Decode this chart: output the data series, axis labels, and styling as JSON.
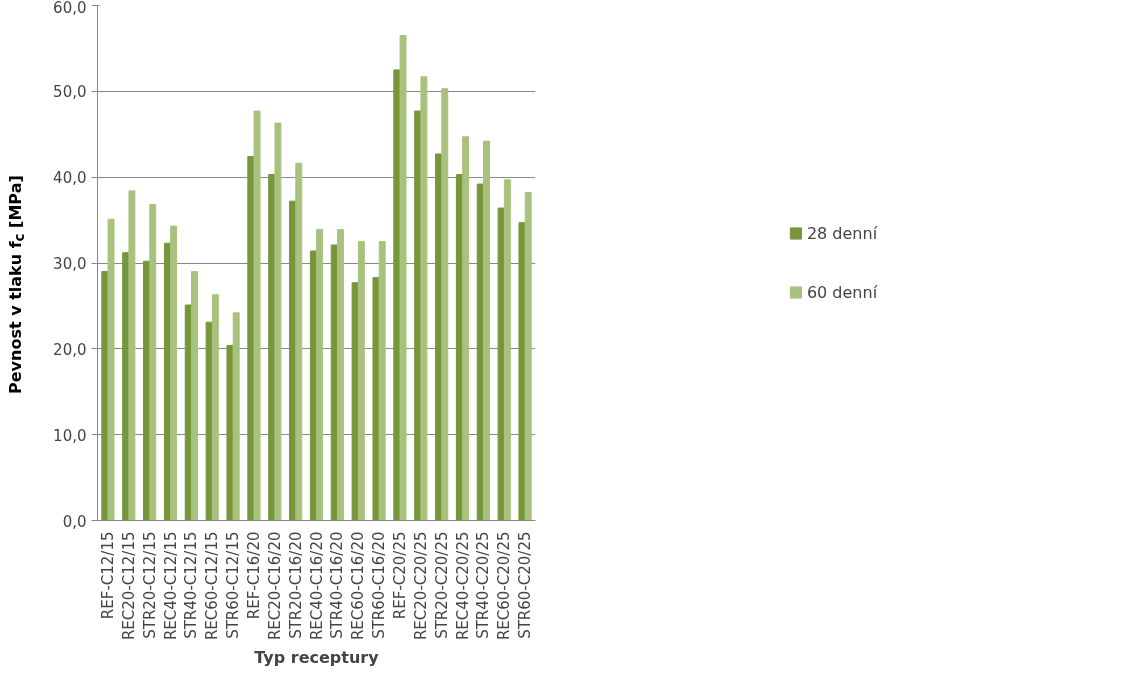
{
  "chart_data": {
    "type": "bar",
    "xlabel": "Typ receptury",
    "ylabel": "Pevnost v tlaku f$_{c}$ [MPa]",
    "categories": [
      "REF-C12/15",
      "REC20-C12/15",
      "STR20-C12/15",
      "REC40-C12/15",
      "STR40-C12/15",
      "REC60-C12/15",
      "STR60-C12/15",
      "REF-C16/20",
      "REC20-C16/20",
      "STR20-C16/20",
      "REC40-C16/20",
      "STR40-C16/20",
      "REC60-C16/20",
      "STR60-C16/20",
      "REF-C20/25",
      "REC20-C20/25",
      "STR20-C20/25",
      "REC40-C20/25",
      "STR40-C20/25",
      "REC60-C20/25",
      "STR60-C20/25"
    ],
    "series": [
      {
        "name": "28 denní",
        "color": "#77963a",
        "values": [
          29.0,
          31.2,
          30.2,
          32.3,
          25.1,
          23.1,
          20.4,
          42.4,
          40.3,
          37.2,
          31.4,
          32.1,
          27.7,
          28.3,
          52.5,
          47.7,
          42.7,
          40.3,
          39.2,
          36.4,
          34.7
        ]
      },
      {
        "name": "60 denní",
        "color": "#a8c27e",
        "values": [
          35.1,
          38.4,
          36.8,
          34.3,
          29.0,
          26.3,
          24.2,
          47.7,
          46.3,
          41.6,
          33.9,
          33.9,
          32.5,
          32.5,
          56.5,
          51.7,
          50.3,
          44.7,
          44.2,
          39.7,
          38.2
        ]
      }
    ],
    "ylim": [
      0,
      60
    ],
    "yticks": [
      {
        "value": 0,
        "label": "0,0"
      },
      {
        "value": 10,
        "label": "10,0"
      },
      {
        "value": 20,
        "label": "20,0"
      },
      {
        "value": 30,
        "label": "30,0"
      },
      {
        "value": 40,
        "label": "40,0"
      },
      {
        "value": 50,
        "label": "50,0"
      },
      {
        "value": 60,
        "label": "60,0"
      }
    ],
    "grid": "y",
    "legend": "right"
  }
}
